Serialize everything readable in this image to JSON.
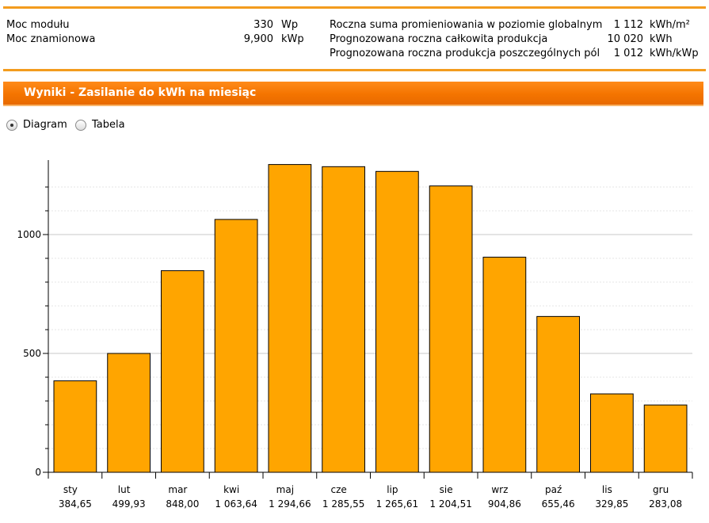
{
  "summary": {
    "left": [
      {
        "label": "Moc modułu",
        "value": "330",
        "unit": "Wp"
      },
      {
        "label": "Moc znamionowa",
        "value": "9,900",
        "unit": "kWp"
      }
    ],
    "right": [
      {
        "label": "Roczna suma promieniowania w poziomie globalnym",
        "value": "1 112",
        "unit": "kWh/m²"
      },
      {
        "label": "Prognozowana roczna całkowita produkcja",
        "value": "10 020",
        "unit": "kWh"
      },
      {
        "label": "Prognozowana roczna produkcja poszczególnych pól",
        "value": "1 012",
        "unit": "kWh/kWp"
      }
    ]
  },
  "section": {
    "title": "Wyniki - Zasilanie do kWh na miesiąc"
  },
  "view_toggle": {
    "options": [
      {
        "label": "Diagram",
        "checked": true
      },
      {
        "label": "Tabela",
        "checked": false
      }
    ]
  },
  "colors": {
    "accent": "#f47400",
    "bar": "#ffa500",
    "rule": "#f39c1e"
  },
  "chart_data": {
    "type": "bar",
    "categories": [
      "sty",
      "lut",
      "mar",
      "kwi",
      "maj",
      "cze",
      "lip",
      "sie",
      "wrz",
      "paź",
      "lis",
      "gru"
    ],
    "values": [
      384.65,
      499.93,
      848.0,
      1063.64,
      1294.66,
      1285.55,
      1265.61,
      1204.51,
      904.86,
      655.46,
      329.85,
      283.08
    ],
    "value_labels": [
      "384,65",
      "499,93",
      "848,00",
      "1 063,64",
      "1 294,66",
      "1 285,55",
      "1 265,61",
      "1 204,51",
      "904,86",
      "655,46",
      "329,85",
      "283,08"
    ],
    "ylim": [
      0,
      1300
    ],
    "yticks": [
      0,
      500,
      1000
    ],
    "ytick_labels": [
      "0",
      "500",
      "1000"
    ],
    "minor_tick_step": 100,
    "grid": true,
    "xlabel": "",
    "ylabel": ""
  }
}
